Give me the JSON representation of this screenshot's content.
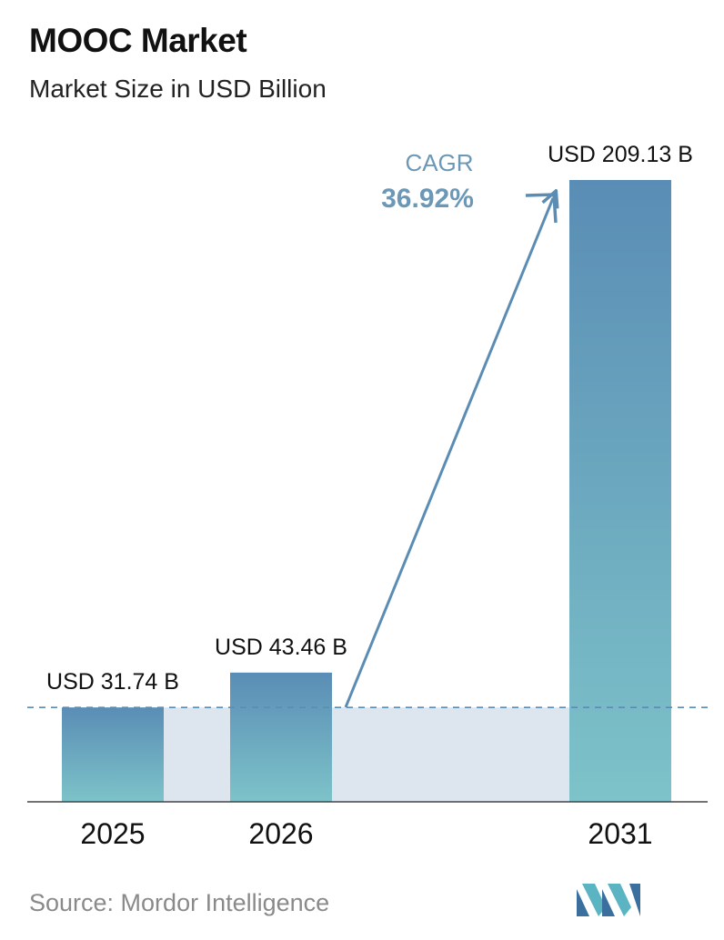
{
  "title": "MOOC Market",
  "subtitle": "Market Size in USD Billion",
  "source": "Source:  Mordor Intelligence",
  "cagr": {
    "label": "CAGR",
    "value": "36.92%"
  },
  "colors": {
    "bar_top": "#5a8db5",
    "bar_bottom": "#7dc3c9",
    "band": "#dde6ef",
    "text_accent": "#6c98b8",
    "arrow": "#5b8db4"
  },
  "chart_data": {
    "type": "bar",
    "title": "MOOC Market",
    "subtitle": "Market Size in USD Billion",
    "categories": [
      "2025",
      "2026",
      "2031"
    ],
    "values": [
      31.74,
      43.46,
      209.13
    ],
    "labels": [
      "USD 31.74 B",
      "USD 43.46 B",
      "USD 209.13 B"
    ],
    "xlabel": "",
    "ylabel": "",
    "ylim": [
      0,
      209.13
    ],
    "grid": false,
    "legend": "none",
    "annotations": [
      "CAGR",
      "36.92%"
    ]
  }
}
